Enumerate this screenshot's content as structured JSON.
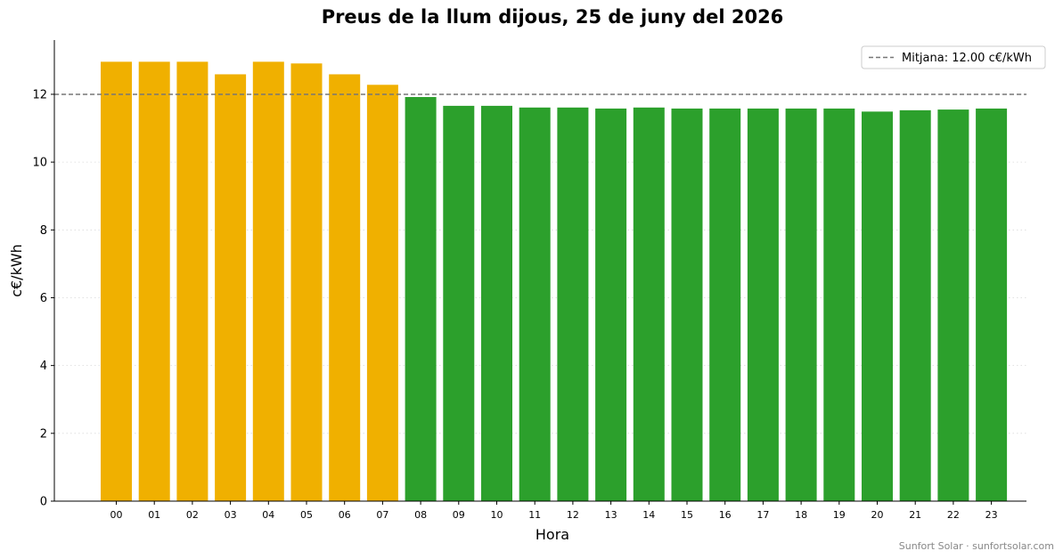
{
  "chart_data": {
    "type": "bar",
    "title": "Preus de la llum dijous, 25 de juny del 2026",
    "xlabel": "Hora",
    "ylabel": "c€/kWh",
    "ylim": [
      0,
      13.6
    ],
    "yticks": [
      0,
      2,
      4,
      6,
      8,
      10,
      12
    ],
    "grid": "horizontal dotted",
    "legend_position": "top-right",
    "categories": [
      "00",
      "01",
      "02",
      "03",
      "04",
      "05",
      "06",
      "07",
      "08",
      "09",
      "10",
      "11",
      "12",
      "13",
      "14",
      "15",
      "16",
      "17",
      "18",
      "19",
      "20",
      "21",
      "22",
      "23"
    ],
    "values": [
      12.96,
      12.96,
      12.96,
      12.59,
      12.96,
      12.91,
      12.59,
      12.28,
      11.92,
      11.66,
      11.66,
      11.61,
      11.61,
      11.58,
      11.61,
      11.58,
      11.58,
      11.58,
      11.58,
      11.58,
      11.49,
      11.53,
      11.55,
      11.58
    ],
    "bar_colors": [
      "#F0B000",
      "#F0B000",
      "#F0B000",
      "#F0B000",
      "#F0B000",
      "#F0B000",
      "#F0B000",
      "#F0B000",
      "#2CA02C",
      "#2CA02C",
      "#2CA02C",
      "#2CA02C",
      "#2CA02C",
      "#2CA02C",
      "#2CA02C",
      "#2CA02C",
      "#2CA02C",
      "#2CA02C",
      "#2CA02C",
      "#2CA02C",
      "#2CA02C",
      "#2CA02C",
      "#2CA02C",
      "#2CA02C"
    ],
    "reference_line": {
      "value": 12.0,
      "label": "Mitjana: 12.00 c€/kWh",
      "color": "#777777",
      "style": "dashed"
    }
  },
  "footer": {
    "credit": "Sunfort Solar · sunfortsolar.com"
  }
}
